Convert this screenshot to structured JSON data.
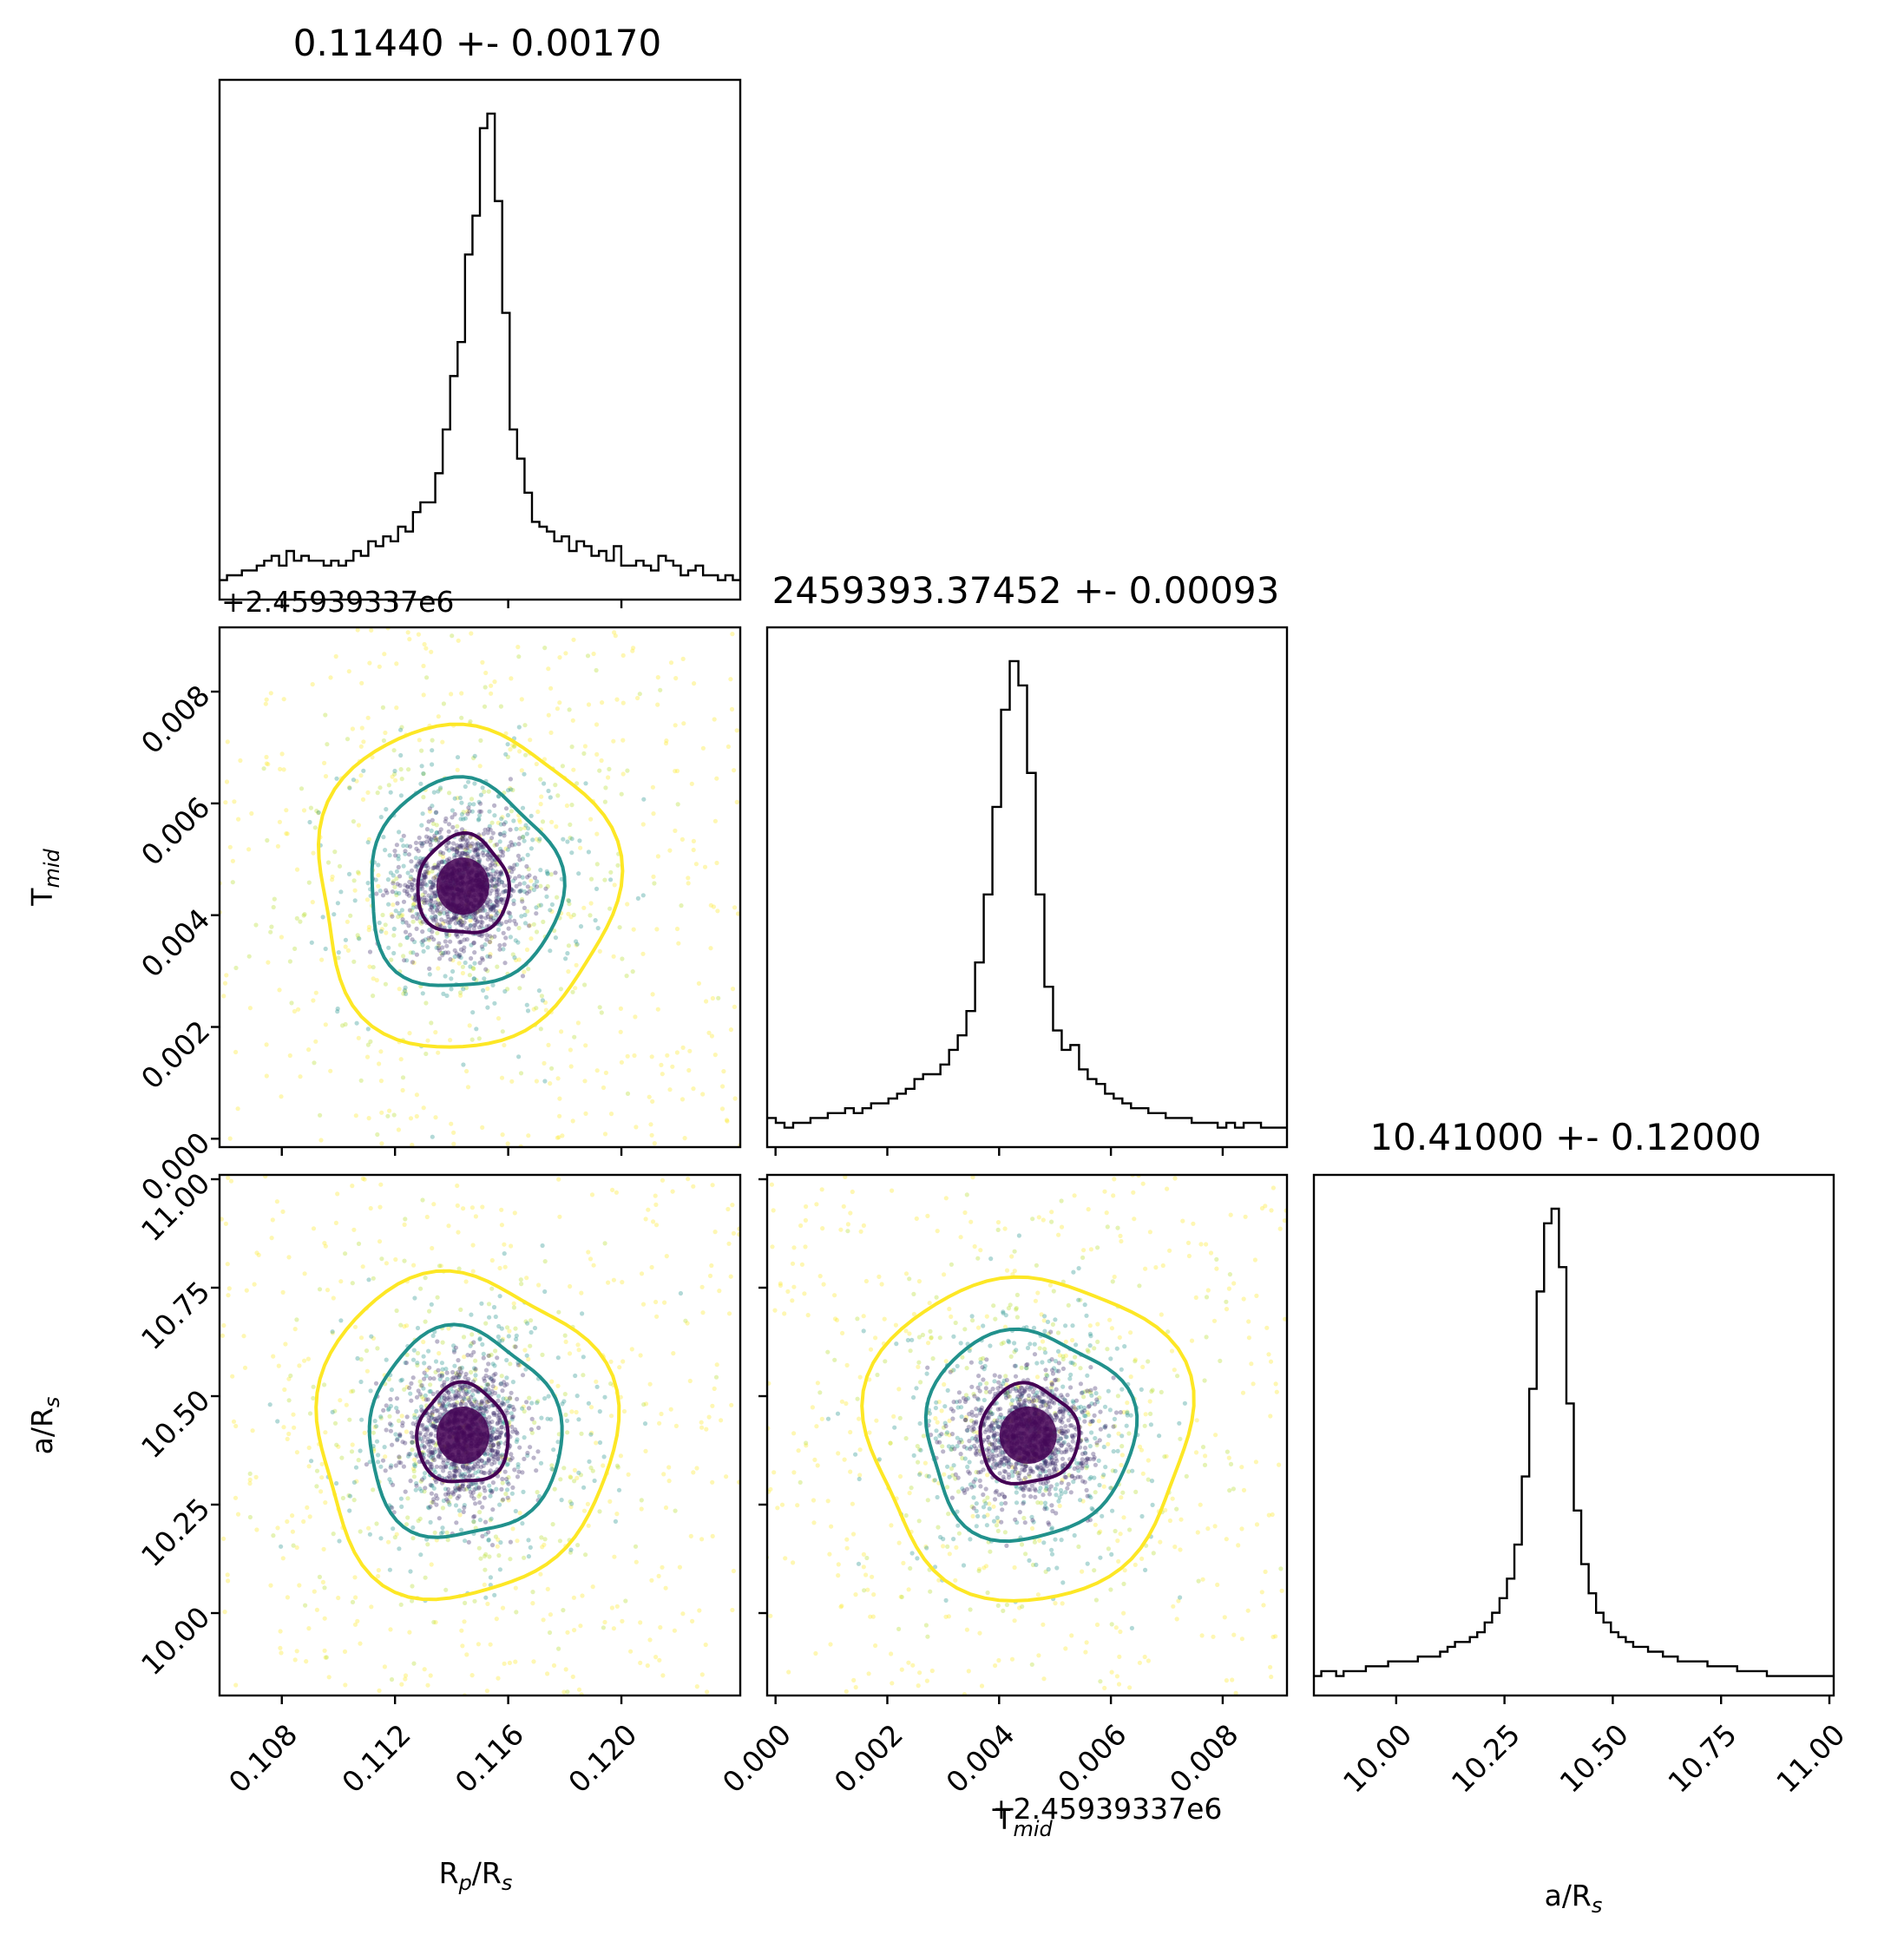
{
  "chart_data": {
    "type": "scatter",
    "variables": [
      {
        "key": "rp",
        "label": "R_p/R_s",
        "range": [
          0.1058,
          0.1242
        ],
        "ticks": [
          0.108,
          0.112,
          0.116,
          0.12
        ],
        "tick_labels": [
          "0.108",
          "0.112",
          "0.116",
          "0.120"
        ]
      },
      {
        "key": "tmid",
        "label": "T_mid",
        "range": [
          -0.00015,
          0.00915
        ],
        "offset_label": "+2.45939337e6",
        "ticks": [
          0.0,
          0.002,
          0.004,
          0.006,
          0.008
        ],
        "tick_labels": [
          "0.000",
          "0.002",
          "0.004",
          "0.006",
          "0.008"
        ]
      },
      {
        "key": "ars",
        "label": "a/R_s",
        "range": [
          9.81,
          11.01
        ],
        "ticks": [
          10.0,
          10.25,
          10.5,
          10.75,
          11.0
        ],
        "tick_labels": [
          "10.00",
          "10.25",
          "10.50",
          "10.75",
          "11.00"
        ]
      }
    ],
    "titles": [
      "0.11440 +- 0.00170",
      "2459393.37452 +- 0.00093",
      "10.41000 +- 0.12000"
    ],
    "axis_labels": {
      "rp": {
        "base": "R",
        "sub": "p",
        "tail": "/R",
        "tail_sub": "s"
      },
      "tmid": {
        "base": "T",
        "sub": "mid"
      },
      "ars": {
        "base": "a/R",
        "sub": "s"
      }
    },
    "histograms": {
      "rp": [
        0.04,
        0.05,
        0.05,
        0.06,
        0.06,
        0.07,
        0.08,
        0.09,
        0.07,
        0.1,
        0.08,
        0.09,
        0.08,
        0.08,
        0.07,
        0.08,
        0.07,
        0.08,
        0.1,
        0.09,
        0.12,
        0.11,
        0.13,
        0.12,
        0.15,
        0.14,
        0.18,
        0.2,
        0.2,
        0.26,
        0.35,
        0.46,
        0.53,
        0.71,
        0.79,
        0.97,
        1.0,
        0.82,
        0.59,
        0.35,
        0.29,
        0.22,
        0.16,
        0.15,
        0.14,
        0.12,
        0.13,
        0.1,
        0.12,
        0.11,
        0.09,
        0.1,
        0.08,
        0.11,
        0.07,
        0.07,
        0.08,
        0.07,
        0.06,
        0.09,
        0.08,
        0.07,
        0.05,
        0.06,
        0.07,
        0.05,
        0.05,
        0.04,
        0.05,
        0.04
      ],
      "tmid": [
        0.06,
        0.05,
        0.04,
        0.05,
        0.05,
        0.06,
        0.06,
        0.07,
        0.07,
        0.08,
        0.07,
        0.08,
        0.09,
        0.09,
        0.1,
        0.11,
        0.12,
        0.14,
        0.15,
        0.15,
        0.17,
        0.2,
        0.23,
        0.28,
        0.38,
        0.52,
        0.7,
        0.9,
        1.0,
        0.95,
        0.77,
        0.52,
        0.33,
        0.24,
        0.2,
        0.21,
        0.16,
        0.14,
        0.13,
        0.11,
        0.1,
        0.09,
        0.08,
        0.08,
        0.07,
        0.07,
        0.06,
        0.06,
        0.06,
        0.05,
        0.05,
        0.05,
        0.04,
        0.05,
        0.04,
        0.05,
        0.05,
        0.04,
        0.04,
        0.04
      ],
      "ars": [
        0.04,
        0.05,
        0.05,
        0.04,
        0.05,
        0.05,
        0.05,
        0.06,
        0.06,
        0.06,
        0.07,
        0.07,
        0.07,
        0.07,
        0.08,
        0.08,
        0.08,
        0.09,
        0.1,
        0.11,
        0.11,
        0.12,
        0.13,
        0.15,
        0.17,
        0.2,
        0.24,
        0.31,
        0.45,
        0.63,
        0.83,
        0.97,
        1.0,
        0.88,
        0.6,
        0.38,
        0.27,
        0.21,
        0.17,
        0.15,
        0.13,
        0.12,
        0.11,
        0.1,
        0.1,
        0.09,
        0.09,
        0.08,
        0.08,
        0.07,
        0.07,
        0.07,
        0.07,
        0.06,
        0.06,
        0.06,
        0.06,
        0.05,
        0.05,
        0.05,
        0.05,
        0.04,
        0.04,
        0.04,
        0.04,
        0.04,
        0.04,
        0.04,
        0.04,
        0.04
      ]
    },
    "posterior": {
      "rp": {
        "mean": 0.1144,
        "std": 0.0017
      },
      "tmid": {
        "mean": 0.00452,
        "std": 0.00093
      },
      "ars": {
        "mean": 10.41,
        "std": 0.12
      }
    },
    "contour_levels": [
      "inner",
      "middle",
      "outer"
    ],
    "colors": {
      "inner": "#440154",
      "middle": "#21918c",
      "outer": "#fde725",
      "hist": "#000000"
    },
    "grid": false
  }
}
